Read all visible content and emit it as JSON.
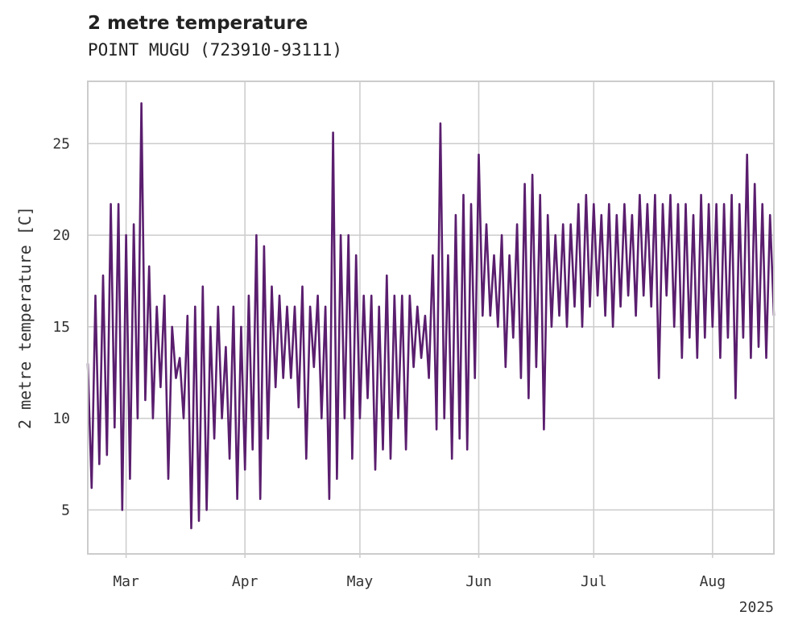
{
  "chart_data": {
    "type": "line",
    "title": "2 metre temperature",
    "subtitle": "POINT MUGU (723910-93111)",
    "ylabel": "2 metre temperature [C]",
    "xlabel": "",
    "x_year_label": "2025",
    "xlim": [
      "2025-02-19",
      "2025-08-17"
    ],
    "ylim": [
      2.6,
      28.4
    ],
    "grid": true,
    "line_color": "#5a1e6e",
    "grid_color": "#cccccc",
    "x_ticks": [
      {
        "date": "2025-03-01",
        "label": "Mar"
      },
      {
        "date": "2025-04-01",
        "label": "Apr"
      },
      {
        "date": "2025-05-01",
        "label": "May"
      },
      {
        "date": "2025-06-01",
        "label": "Jun"
      },
      {
        "date": "2025-07-01",
        "label": "Jul"
      },
      {
        "date": "2025-08-01",
        "label": "Aug"
      }
    ],
    "y_ticks": [
      5,
      10,
      15,
      20,
      25
    ],
    "series": [
      {
        "values": [
          [
            "2025-02-19",
            13.0
          ],
          [
            "2025-02-20",
            6.2
          ],
          [
            "2025-02-21",
            16.7
          ],
          [
            "2025-02-22",
            7.5
          ],
          [
            "2025-02-23",
            17.8
          ],
          [
            "2025-02-24",
            8.0
          ],
          [
            "2025-02-25",
            21.7
          ],
          [
            "2025-02-26",
            9.5
          ],
          [
            "2025-02-27",
            21.7
          ],
          [
            "2025-02-28",
            5.0
          ],
          [
            "2025-03-01",
            20.0
          ],
          [
            "2025-03-02",
            6.7
          ],
          [
            "2025-03-03",
            20.6
          ],
          [
            "2025-03-04",
            10.0
          ],
          [
            "2025-03-05",
            27.2
          ],
          [
            "2025-03-06",
            11.0
          ],
          [
            "2025-03-07",
            18.3
          ],
          [
            "2025-03-08",
            10.0
          ],
          [
            "2025-03-09",
            16.1
          ],
          [
            "2025-03-10",
            11.7
          ],
          [
            "2025-03-11",
            16.7
          ],
          [
            "2025-03-12",
            6.7
          ],
          [
            "2025-03-13",
            15.0
          ],
          [
            "2025-03-14",
            12.2
          ],
          [
            "2025-03-15",
            13.3
          ],
          [
            "2025-03-16",
            10.0
          ],
          [
            "2025-03-17",
            15.6
          ],
          [
            "2025-03-18",
            4.0
          ],
          [
            "2025-03-19",
            16.1
          ],
          [
            "2025-03-20",
            4.4
          ],
          [
            "2025-03-21",
            17.2
          ],
          [
            "2025-03-22",
            5.0
          ],
          [
            "2025-03-23",
            15.0
          ],
          [
            "2025-03-24",
            8.9
          ],
          [
            "2025-03-25",
            16.1
          ],
          [
            "2025-03-26",
            10.0
          ],
          [
            "2025-03-27",
            13.9
          ],
          [
            "2025-03-28",
            7.8
          ],
          [
            "2025-03-29",
            16.1
          ],
          [
            "2025-03-30",
            5.6
          ],
          [
            "2025-03-31",
            15.0
          ],
          [
            "2025-04-01",
            7.2
          ],
          [
            "2025-04-02",
            16.7
          ],
          [
            "2025-04-03",
            8.3
          ],
          [
            "2025-04-04",
            20.0
          ],
          [
            "2025-04-05",
            5.6
          ],
          [
            "2025-04-06",
            19.4
          ],
          [
            "2025-04-07",
            8.9
          ],
          [
            "2025-04-08",
            17.2
          ],
          [
            "2025-04-09",
            11.7
          ],
          [
            "2025-04-10",
            16.7
          ],
          [
            "2025-04-11",
            12.2
          ],
          [
            "2025-04-12",
            16.1
          ],
          [
            "2025-04-13",
            12.2
          ],
          [
            "2025-04-14",
            16.1
          ],
          [
            "2025-04-15",
            10.6
          ],
          [
            "2025-04-16",
            17.2
          ],
          [
            "2025-04-17",
            7.8
          ],
          [
            "2025-04-18",
            16.1
          ],
          [
            "2025-04-19",
            12.8
          ],
          [
            "2025-04-20",
            16.7
          ],
          [
            "2025-04-21",
            10.0
          ],
          [
            "2025-04-22",
            16.1
          ],
          [
            "2025-04-23",
            5.6
          ],
          [
            "2025-04-24",
            25.6
          ],
          [
            "2025-04-25",
            6.7
          ],
          [
            "2025-04-26",
            20.0
          ],
          [
            "2025-04-27",
            10.0
          ],
          [
            "2025-04-28",
            20.0
          ],
          [
            "2025-04-29",
            7.8
          ],
          [
            "2025-04-30",
            18.9
          ],
          [
            "2025-05-01",
            10.0
          ],
          [
            "2025-05-02",
            16.7
          ],
          [
            "2025-05-03",
            11.1
          ],
          [
            "2025-05-04",
            16.7
          ],
          [
            "2025-05-05",
            7.2
          ],
          [
            "2025-05-06",
            16.1
          ],
          [
            "2025-05-07",
            8.3
          ],
          [
            "2025-05-08",
            17.8
          ],
          [
            "2025-05-09",
            7.8
          ],
          [
            "2025-05-10",
            16.7
          ],
          [
            "2025-05-11",
            10.0
          ],
          [
            "2025-05-12",
            16.7
          ],
          [
            "2025-05-13",
            8.3
          ],
          [
            "2025-05-14",
            16.7
          ],
          [
            "2025-05-15",
            12.8
          ],
          [
            "2025-05-16",
            16.1
          ],
          [
            "2025-05-17",
            13.3
          ],
          [
            "2025-05-18",
            15.6
          ],
          [
            "2025-05-19",
            12.2
          ],
          [
            "2025-05-20",
            18.9
          ],
          [
            "2025-05-21",
            9.4
          ],
          [
            "2025-05-22",
            26.1
          ],
          [
            "2025-05-23",
            10.0
          ],
          [
            "2025-05-24",
            18.9
          ],
          [
            "2025-05-25",
            7.8
          ],
          [
            "2025-05-26",
            21.1
          ],
          [
            "2025-05-27",
            8.9
          ],
          [
            "2025-05-28",
            22.2
          ],
          [
            "2025-05-29",
            8.3
          ],
          [
            "2025-05-30",
            21.7
          ],
          [
            "2025-05-31",
            12.2
          ],
          [
            "2025-06-01",
            24.4
          ],
          [
            "2025-06-02",
            15.6
          ],
          [
            "2025-06-03",
            20.6
          ],
          [
            "2025-06-04",
            15.6
          ],
          [
            "2025-06-05",
            18.9
          ],
          [
            "2025-06-06",
            15.0
          ],
          [
            "2025-06-07",
            20.0
          ],
          [
            "2025-06-08",
            12.8
          ],
          [
            "2025-06-09",
            18.9
          ],
          [
            "2025-06-10",
            14.4
          ],
          [
            "2025-06-11",
            20.6
          ],
          [
            "2025-06-12",
            12.2
          ],
          [
            "2025-06-13",
            22.8
          ],
          [
            "2025-06-14",
            11.1
          ],
          [
            "2025-06-15",
            23.3
          ],
          [
            "2025-06-16",
            12.8
          ],
          [
            "2025-06-17",
            22.2
          ],
          [
            "2025-06-18",
            9.4
          ],
          [
            "2025-06-19",
            21.1
          ],
          [
            "2025-06-20",
            15.0
          ],
          [
            "2025-06-21",
            20.0
          ],
          [
            "2025-06-22",
            15.6
          ],
          [
            "2025-06-23",
            20.6
          ],
          [
            "2025-06-24",
            15.0
          ],
          [
            "2025-06-25",
            20.6
          ],
          [
            "2025-06-26",
            16.1
          ],
          [
            "2025-06-27",
            21.7
          ],
          [
            "2025-06-28",
            15.0
          ],
          [
            "2025-06-29",
            22.2
          ],
          [
            "2025-06-30",
            16.1
          ],
          [
            "2025-07-01",
            21.7
          ],
          [
            "2025-07-02",
            16.7
          ],
          [
            "2025-07-03",
            21.1
          ],
          [
            "2025-07-04",
            15.6
          ],
          [
            "2025-07-05",
            21.7
          ],
          [
            "2025-07-06",
            15.0
          ],
          [
            "2025-07-07",
            21.1
          ],
          [
            "2025-07-08",
            16.1
          ],
          [
            "2025-07-09",
            21.7
          ],
          [
            "2025-07-10",
            16.7
          ],
          [
            "2025-07-11",
            21.1
          ],
          [
            "2025-07-12",
            15.6
          ],
          [
            "2025-07-13",
            22.2
          ],
          [
            "2025-07-14",
            16.7
          ],
          [
            "2025-07-15",
            21.7
          ],
          [
            "2025-07-16",
            16.1
          ],
          [
            "2025-07-17",
            22.2
          ],
          [
            "2025-07-18",
            12.2
          ],
          [
            "2025-07-19",
            21.7
          ],
          [
            "2025-07-20",
            16.7
          ],
          [
            "2025-07-21",
            22.2
          ],
          [
            "2025-07-22",
            15.0
          ],
          [
            "2025-07-23",
            21.7
          ],
          [
            "2025-07-24",
            13.3
          ],
          [
            "2025-07-25",
            21.7
          ],
          [
            "2025-07-26",
            14.4
          ],
          [
            "2025-07-27",
            21.1
          ],
          [
            "2025-07-28",
            13.3
          ],
          [
            "2025-07-29",
            22.2
          ],
          [
            "2025-07-30",
            14.4
          ],
          [
            "2025-07-31",
            21.7
          ],
          [
            "2025-08-01",
            15.0
          ],
          [
            "2025-08-02",
            21.7
          ],
          [
            "2025-08-03",
            13.3
          ],
          [
            "2025-08-04",
            21.7
          ],
          [
            "2025-08-05",
            14.4
          ],
          [
            "2025-08-06",
            22.2
          ],
          [
            "2025-08-07",
            11.1
          ],
          [
            "2025-08-08",
            21.7
          ],
          [
            "2025-08-09",
            14.4
          ],
          [
            "2025-08-10",
            24.4
          ],
          [
            "2025-08-11",
            13.3
          ],
          [
            "2025-08-12",
            22.8
          ],
          [
            "2025-08-13",
            13.9
          ],
          [
            "2025-08-14",
            21.7
          ],
          [
            "2025-08-15",
            13.3
          ],
          [
            "2025-08-16",
            21.1
          ],
          [
            "2025-08-17",
            15.6
          ]
        ]
      }
    ]
  }
}
